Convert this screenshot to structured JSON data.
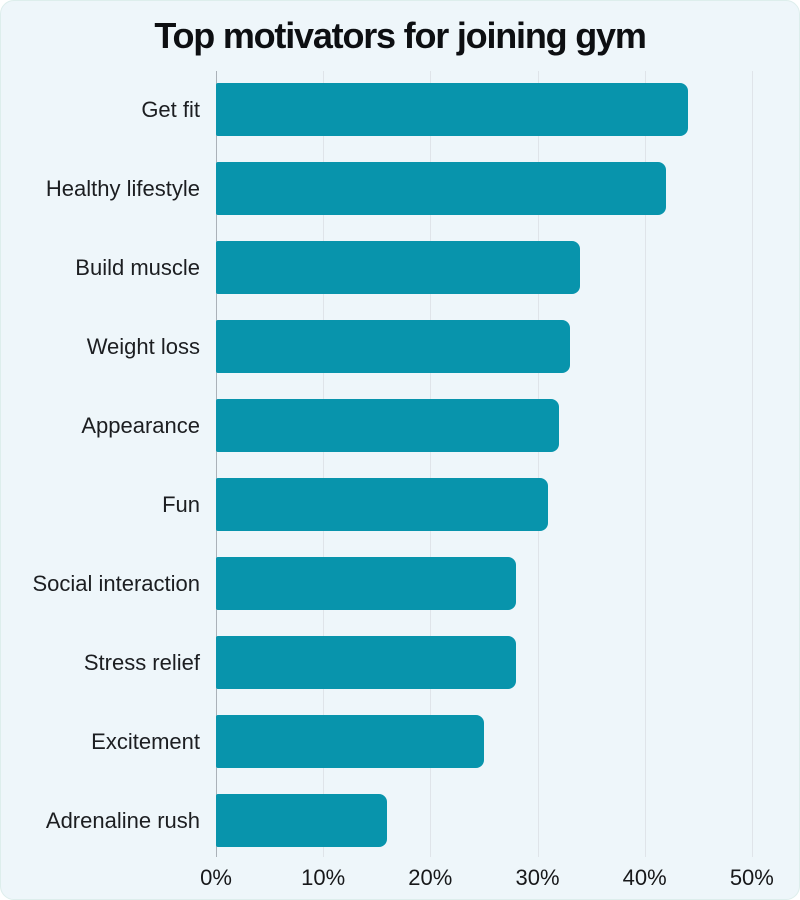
{
  "page": {
    "background": "#eef6fa"
  },
  "chart_data": {
    "type": "bar",
    "orientation": "horizontal",
    "title": "Top motivators for joining gym",
    "categories": [
      "Get fit",
      "Healthy lifestyle",
      "Build muscle",
      "Weight loss",
      "Appearance",
      "Fun",
      "Social interaction",
      "Stress relief",
      "Excitement",
      "Adrenaline rush"
    ],
    "values": [
      44,
      42,
      34,
      33,
      32,
      31,
      28,
      28,
      25,
      16
    ],
    "unit": "%",
    "xlabel": "",
    "ylabel": "",
    "xlim": [
      0,
      51.6
    ],
    "xticks": {
      "values": [
        0,
        10,
        20,
        30,
        40,
        50
      ],
      "labels": [
        "0%",
        "10%",
        "20%",
        "30%",
        "40%",
        "50%"
      ]
    },
    "grid": true,
    "legend": "none",
    "bar_color": "#0894ac",
    "gridline_color": "#dfe4e9",
    "zero_line_color": "#aab1b8"
  }
}
